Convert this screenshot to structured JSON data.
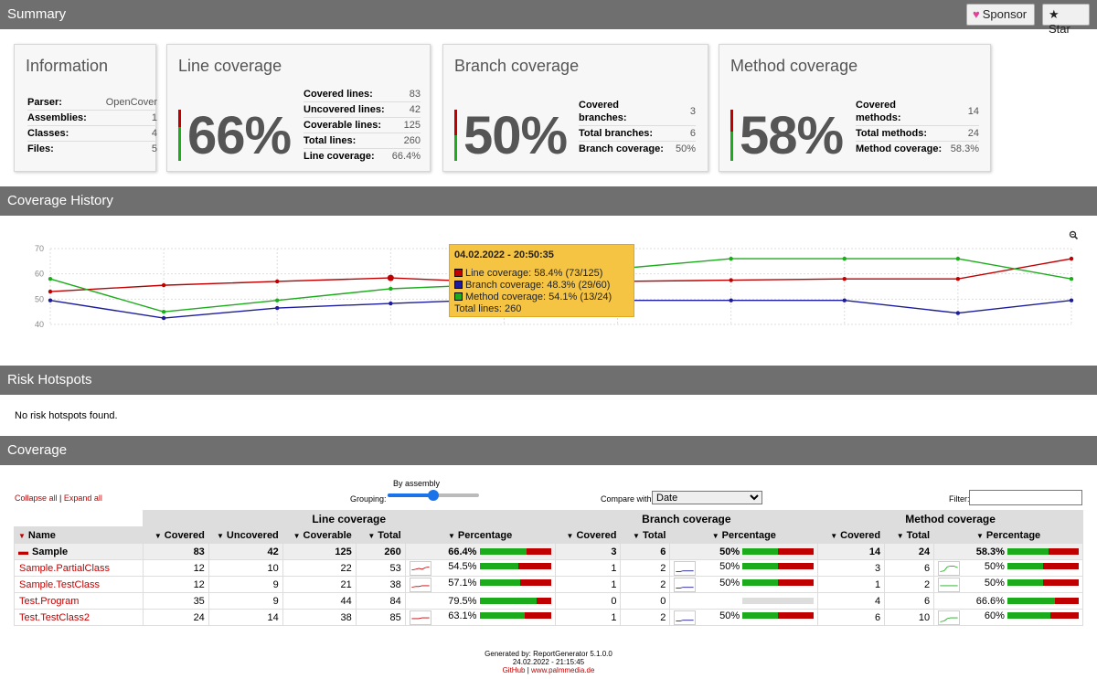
{
  "header": {
    "title": "Summary",
    "sponsor": "Sponsor",
    "star": "Star"
  },
  "info": {
    "title": "Information",
    "rows": [
      {
        "k": "Parser:",
        "v": "OpenCover"
      },
      {
        "k": "Assemblies:",
        "v": "1"
      },
      {
        "k": "Classes:",
        "v": "4"
      },
      {
        "k": "Files:",
        "v": "5"
      }
    ]
  },
  "line": {
    "title": "Line coverage",
    "pct": "66%",
    "fraction": 0.66,
    "rows": [
      {
        "k": "Covered lines:",
        "v": "83"
      },
      {
        "k": "Uncovered lines:",
        "v": "42"
      },
      {
        "k": "Coverable lines:",
        "v": "125"
      },
      {
        "k": "Total lines:",
        "v": "260"
      },
      {
        "k": "Line coverage:",
        "v": "66.4%"
      }
    ]
  },
  "branch": {
    "title": "Branch coverage",
    "pct": "50%",
    "fraction": 0.5,
    "rows": [
      {
        "k": "Covered branches:",
        "v": "3"
      },
      {
        "k": "Total branches:",
        "v": "6"
      },
      {
        "k": "Branch coverage:",
        "v": "50%"
      }
    ]
  },
  "method": {
    "title": "Method coverage",
    "pct": "58%",
    "fraction": 0.58,
    "rows": [
      {
        "k": "Covered methods:",
        "v": "14"
      },
      {
        "k": "Total methods:",
        "v": "24"
      },
      {
        "k": "Method coverage:",
        "v": "58.3%"
      }
    ]
  },
  "history": {
    "title": "Coverage History",
    "zoom_icon": "magnifier-icon"
  },
  "chart_data": {
    "type": "line",
    "ylim": [
      40,
      70
    ],
    "yticks": [
      "70",
      "60",
      "50",
      "40"
    ],
    "series": [
      {
        "name": "Line coverage",
        "color": "#c00000",
        "values": [
          53,
          55.5,
          57,
          58.4,
          56.5,
          57,
          57.5,
          58,
          58,
          66
        ]
      },
      {
        "name": "Branch coverage",
        "color": "#1c1c9c",
        "values": [
          49.5,
          42.5,
          46.5,
          48.3,
          50,
          49.5,
          49.5,
          49.5,
          44.5,
          49.5
        ]
      },
      {
        "name": "Method coverage",
        "color": "#1bab1b",
        "values": [
          58,
          45,
          49.5,
          54.1,
          56,
          62,
          66,
          66,
          66,
          58
        ]
      }
    ],
    "tooltip": {
      "title": "04.02.2022 - 20:50:35",
      "line": "Line coverage: 58.4% (73/125)",
      "branch": "Branch coverage: 48.3% (29/60)",
      "method": "Method coverage: 54.1% (13/24)",
      "total": "Total lines: 260"
    }
  },
  "hotspots": {
    "title": "Risk Hotspots",
    "message": "No risk hotspots found."
  },
  "coverage": {
    "title": "Coverage",
    "collapse_all": "Collapse all",
    "expand_all": "Expand all",
    "grouping_label": "Grouping:",
    "grouping_value": "By assembly",
    "compare_label": "Compare with:",
    "compare_value": "Date",
    "filter_label": "Filter:",
    "groups": {
      "line": "Line coverage",
      "branch": "Branch coverage",
      "method": "Method coverage"
    },
    "cols": {
      "name": "Name",
      "covered": "Covered",
      "uncovered": "Uncovered",
      "coverable": "Coverable",
      "total": "Total",
      "percentage": "Percentage"
    },
    "rows": [
      {
        "name": "Sample",
        "asm": true,
        "lc": "83",
        "lu": "42",
        "lcv": "125",
        "lt": "260",
        "lp": "66.4%",
        "lf": 0.664,
        "bc": "3",
        "bt": "6",
        "bp": "50%",
        "bf": 0.5,
        "mc": "14",
        "mt": "24",
        "mp": "58.3%",
        "mf": 0.583
      },
      {
        "name": "Sample.PartialClass",
        "lc": "12",
        "lu": "10",
        "lcv": "22",
        "lt": "53",
        "lp": "54.5%",
        "lf": 0.545,
        "bc": "1",
        "bt": "2",
        "bp": "50%",
        "bf": 0.5,
        "mc": "3",
        "mt": "6",
        "mp": "50%",
        "mf": 0.5
      },
      {
        "name": "Sample.TestClass",
        "lc": "12",
        "lu": "9",
        "lcv": "21",
        "lt": "38",
        "lp": "57.1%",
        "lf": 0.571,
        "bc": "1",
        "bt": "2",
        "bp": "50%",
        "bf": 0.5,
        "mc": "1",
        "mt": "2",
        "mp": "50%",
        "mf": 0.5
      },
      {
        "name": "Test.Program",
        "lc": "35",
        "lu": "9",
        "lcv": "44",
        "lt": "84",
        "lp": "79.5%",
        "lf": 0.795,
        "bc": "0",
        "bt": "0",
        "bp": "",
        "bf": null,
        "mc": "4",
        "mt": "6",
        "mp": "66.6%",
        "mf": 0.666
      },
      {
        "name": "Test.TestClass2",
        "lc": "24",
        "lu": "14",
        "lcv": "38",
        "lt": "85",
        "lp": "63.1%",
        "lf": 0.631,
        "bc": "1",
        "bt": "2",
        "bp": "50%",
        "bf": 0.5,
        "mc": "6",
        "mt": "10",
        "mp": "60%",
        "mf": 0.6
      }
    ]
  },
  "footer": {
    "generated": "Generated by: ReportGenerator 5.1.0.0",
    "date": "24.02.2022 - 21:15:45",
    "github": "GitHub",
    "sep": "|",
    "site": "www.palmmedia.de"
  }
}
